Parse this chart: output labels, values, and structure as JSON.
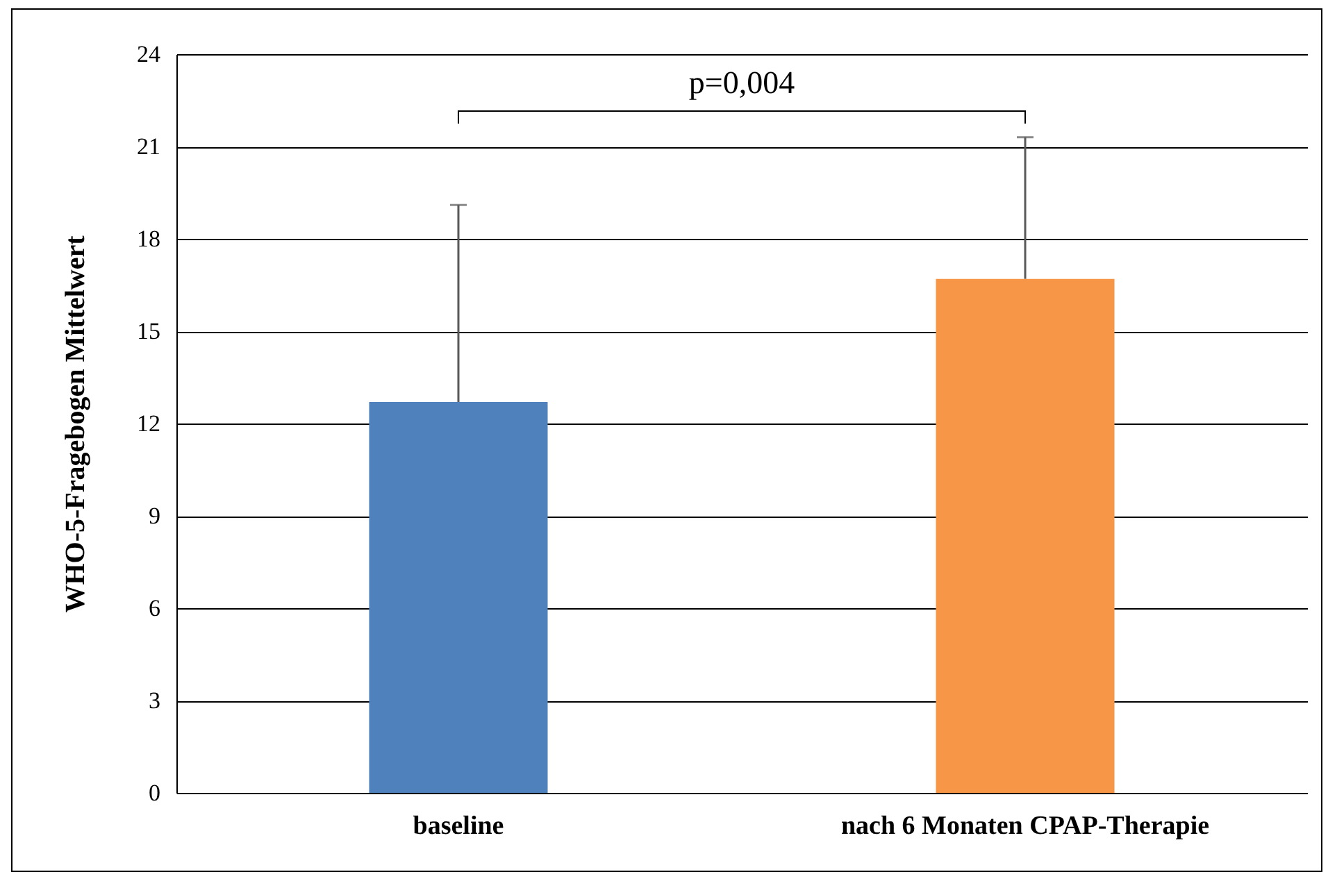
{
  "chart_data": {
    "type": "bar",
    "ylabel": "WHO-5-Fragebogen Mittelwert",
    "categories": [
      "baseline",
      "nach 6 Monaten CPAP-Therapie"
    ],
    "values": [
      12.7,
      16.7
    ],
    "colors": [
      "#4f81bd",
      "#f79646"
    ],
    "errors": [
      [
        12.7,
        19.1
      ],
      [
        16.7,
        21.3
      ]
    ],
    "ylim": [
      0,
      24
    ],
    "yticks": [
      0,
      3,
      6,
      9,
      12,
      15,
      18,
      21,
      24
    ],
    "grid": "y",
    "annotations": [
      "p=0,004"
    ]
  }
}
